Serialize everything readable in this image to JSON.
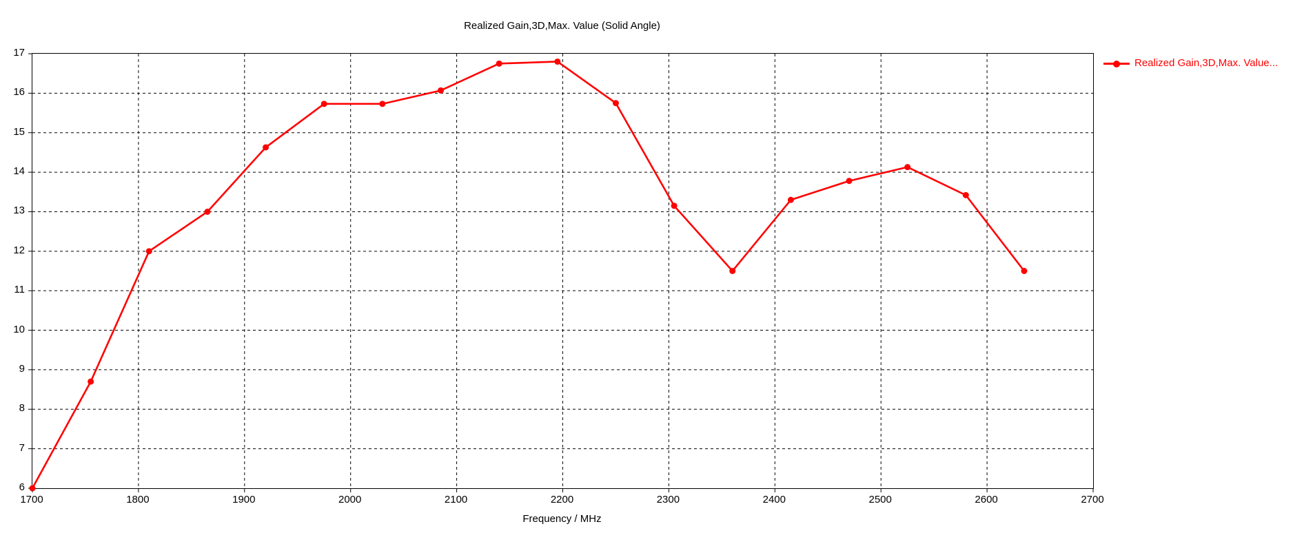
{
  "page": {
    "background": "#ffffff"
  },
  "chart_data": {
    "type": "line",
    "title": "Realized Gain,3D,Max. Value (Solid Angle)",
    "xlabel": "Frequency / MHz",
    "ylabel": "",
    "xlim": [
      1700,
      2700
    ],
    "ylim": [
      6,
      17
    ],
    "x_ticks": [
      1700,
      1800,
      1900,
      2000,
      2100,
      2200,
      2300,
      2400,
      2500,
      2600,
      2700
    ],
    "y_ticks": [
      6,
      7,
      8,
      9,
      10,
      11,
      12,
      13,
      14,
      15,
      16,
      17
    ],
    "grid": {
      "shown": true,
      "style": "dashed",
      "color": "#000000"
    },
    "axis_color": "#000000",
    "legend": {
      "position": "top-right",
      "entries": [
        {
          "label": "Realized Gain,3D,Max. Value...",
          "color": "#ff0000",
          "marker": "line-dot"
        }
      ]
    },
    "series": [
      {
        "name": "Realized Gain,3D,Max. Value...",
        "color": "#ff0000",
        "marker": "circle",
        "marker_radius": 4.5,
        "line_width": 2.6,
        "x": [
          1700,
          1755,
          1810,
          1865,
          1920,
          1975,
          2030,
          2085,
          2140,
          2195,
          2250,
          2305,
          2360,
          2415,
          2470,
          2525,
          2580,
          2635
        ],
        "y": [
          6.0,
          8.7,
          12.0,
          13.0,
          14.63,
          15.73,
          15.73,
          16.07,
          16.75,
          16.8,
          15.75,
          13.15,
          11.5,
          13.3,
          13.78,
          14.13,
          13.42,
          11.5
        ]
      }
    ]
  }
}
